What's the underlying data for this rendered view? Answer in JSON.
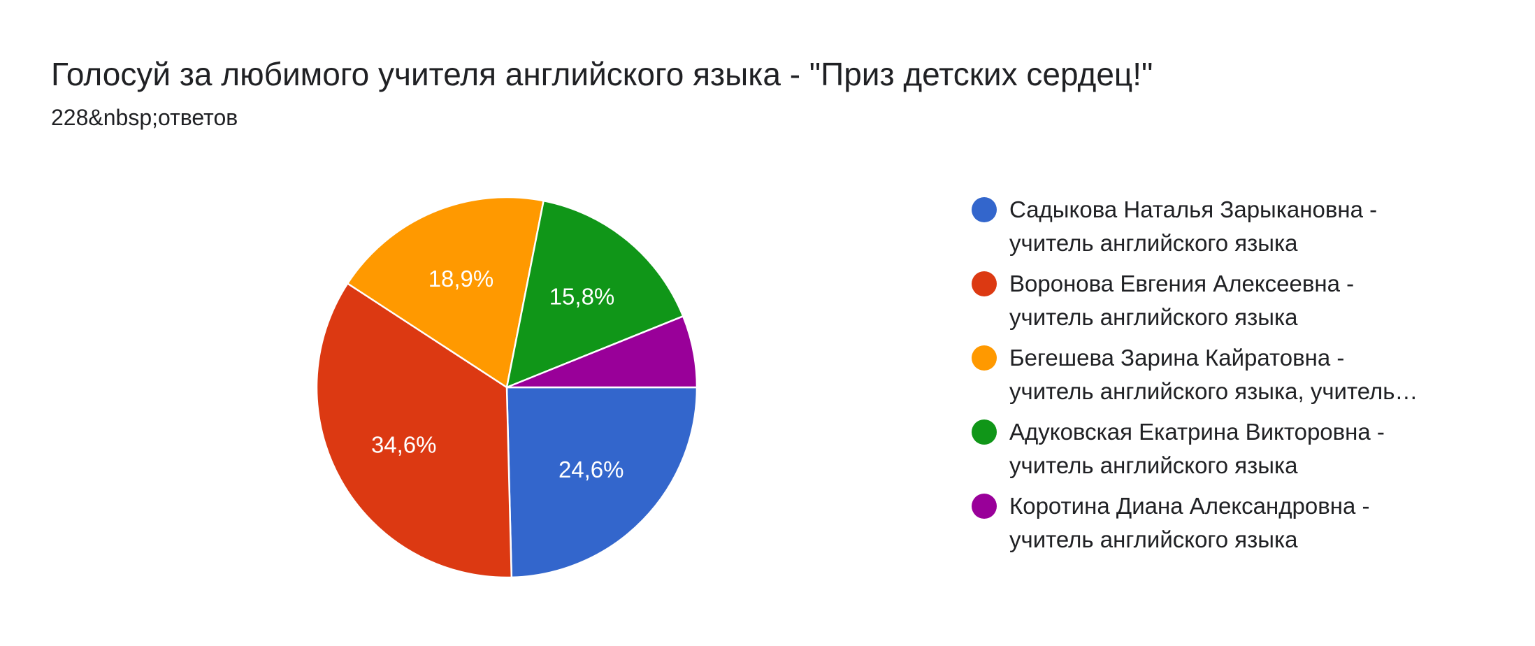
{
  "header": {
    "title": "Голосуй за любимого учителя английского языка - \"Приз детских сердец!\"",
    "subtitle": "228&nbsp;ответов"
  },
  "chart_data": {
    "type": "pie",
    "title": "Голосуй за любимого учителя английского языка - \"Приз детских сердец!\"",
    "subtitle": "228&nbsp;ответов",
    "legend_position": "right",
    "slices": [
      {
        "label_line1": "Садыкова Наталья Зарыкановна -",
        "label_line2": "учитель английского языка",
        "value": 24.6,
        "value_label": "24,6%",
        "show_value_label": true,
        "color": "#3366cc"
      },
      {
        "label_line1": "Воронова Евгения Алексеевна -",
        "label_line2": "учитель английского языка",
        "value": 34.6,
        "value_label": "34,6%",
        "show_value_label": true,
        "color": "#dc3912"
      },
      {
        "label_line1": "Бегешева Зарина Кайратовна -",
        "label_line2": "учитель английского языка, учитель…",
        "value": 18.9,
        "value_label": "18,9%",
        "show_value_label": true,
        "color": "#ff9900"
      },
      {
        "label_line1": "Адуковская Екатрина Викторовна -",
        "label_line2": "учитель английского языка",
        "value": 15.8,
        "value_label": "15,8%",
        "show_value_label": true,
        "color": "#109618"
      },
      {
        "label_line1": "Коротина Диана Александровна -",
        "label_line2": "учитель английского языка",
        "value": 6.1,
        "value_label": "",
        "show_value_label": false,
        "color": "#990099"
      }
    ]
  }
}
